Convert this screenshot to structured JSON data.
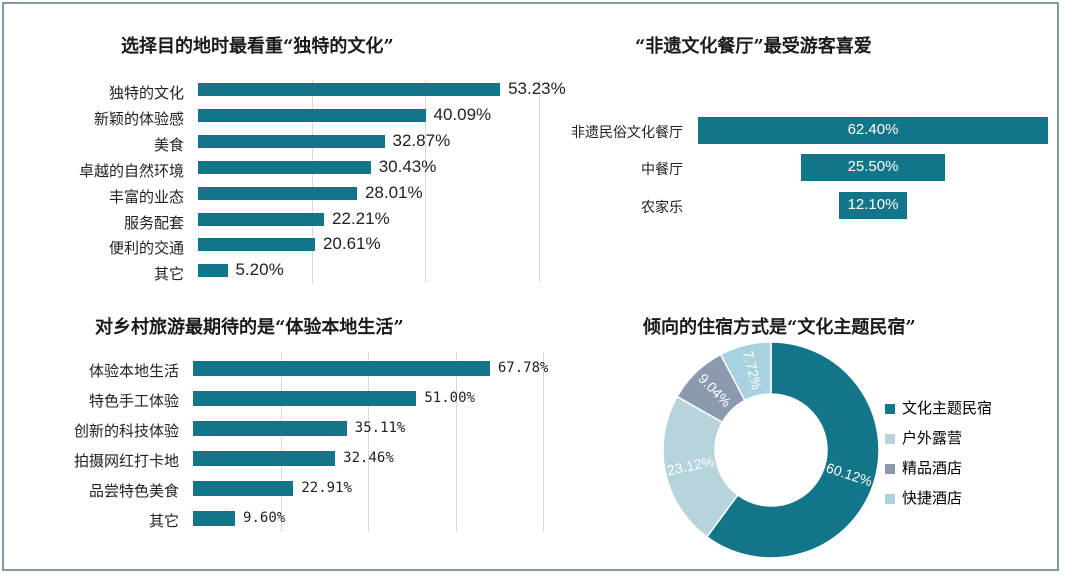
{
  "colors": {
    "bar": "#13758a",
    "pie": [
      "#13758a",
      "#b7d3dc",
      "#8b9aad",
      "#a8d3de"
    ]
  },
  "chart_data": [
    {
      "type": "bar",
      "orientation": "horizontal",
      "title": "选择目的地时最看重“独特的文化”",
      "categories": [
        "独特的文化",
        "新颖的体验感",
        "美食",
        "卓越的自然环境",
        "丰富的业态",
        "服务配套",
        "便利的交通",
        "其它"
      ],
      "values": [
        53.23,
        40.09,
        32.87,
        30.43,
        28.01,
        22.21,
        20.61,
        5.2
      ],
      "labels": [
        "53.23%",
        "40.09%",
        "32.87%",
        "30.43%",
        "28.01%",
        "22.21%",
        "20.61%",
        "5.20%"
      ],
      "xlim": [
        0,
        80
      ],
      "grid": true
    },
    {
      "type": "bar",
      "orientation": "horizontal",
      "style": "funnel",
      "title": "“非遗文化餐厅”最受游客喜爱",
      "categories": [
        "非遗民俗文化餐厅",
        "中餐厅",
        "农家乐"
      ],
      "values": [
        62.4,
        25.5,
        12.1
      ],
      "labels": [
        "62.40%",
        "25.50%",
        "12.10%"
      ]
    },
    {
      "type": "bar",
      "orientation": "horizontal",
      "title": "对乡村旅游最期待的是“体验本地生活”",
      "categories": [
        "体验本地生活",
        "特色手工体验",
        "创新的科技体验",
        "拍摄网红打卡地",
        "品尝特色美食",
        "其它"
      ],
      "values": [
        67.78,
        51.0,
        35.11,
        32.46,
        22.91,
        9.6
      ],
      "labels": [
        "67.78%",
        "51.00%",
        "35.11%",
        "32.46%",
        "22.91%",
        "9.60%"
      ],
      "xlim": [
        0,
        100
      ],
      "grid": true
    },
    {
      "type": "pie",
      "style": "donut",
      "title": "倾向的住宿方式是“文化主题民宿”",
      "categories": [
        "文化主题民宿",
        "户外露营",
        "精品酒店",
        "快捷酒店"
      ],
      "values": [
        60.12,
        23.12,
        9.04,
        7.72
      ],
      "labels": [
        "60.12%",
        "23.12%",
        "9.04%",
        "7.72%"
      ],
      "legend": "right"
    }
  ]
}
